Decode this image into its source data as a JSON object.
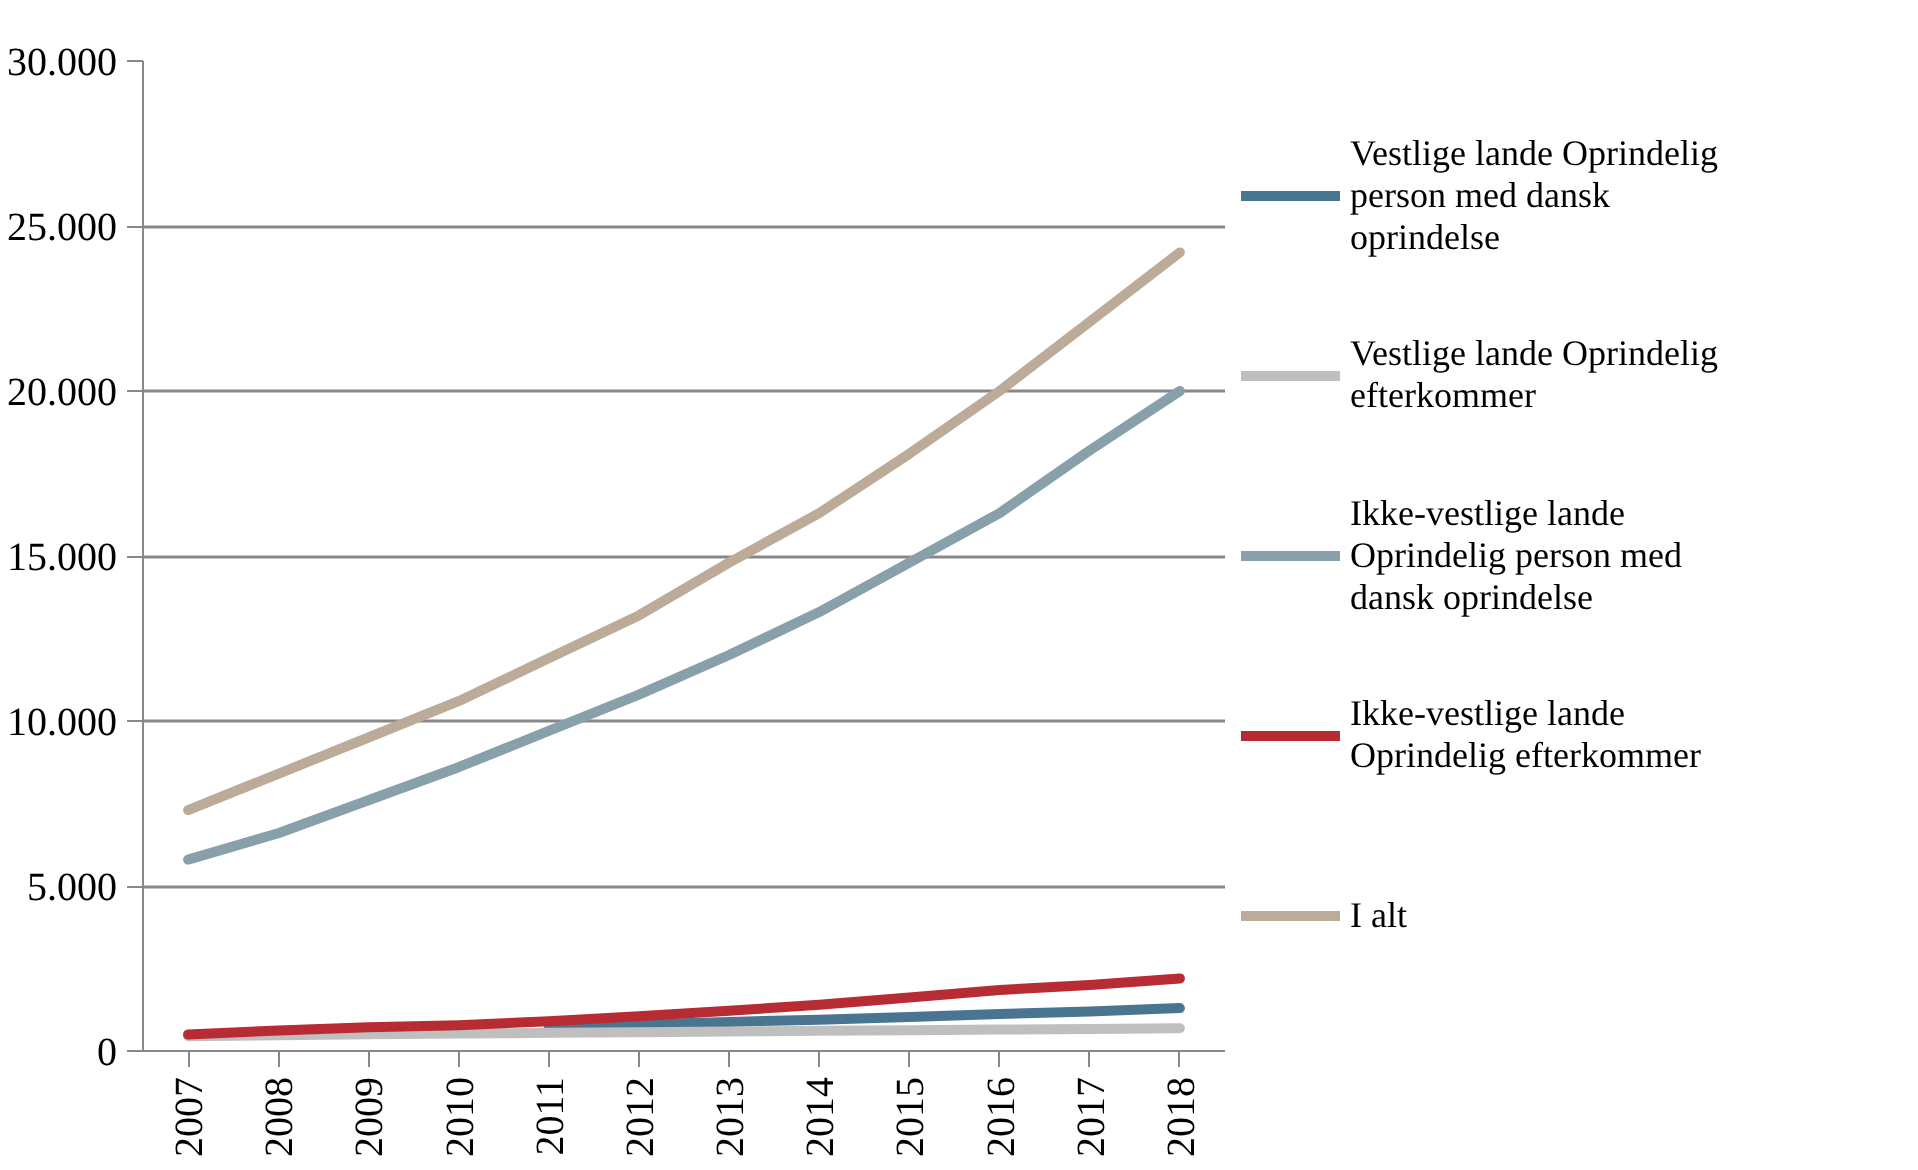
{
  "chart_data": {
    "type": "line",
    "categories": [
      "2007",
      "2008",
      "2009",
      "2010",
      "2011",
      "2012",
      "2013",
      "2014",
      "2015",
      "2016",
      "2017",
      "2018"
    ],
    "series": [
      {
        "name": "Vestlige lande Oprindelig person med dansk oprindelse",
        "color": "#4a7590",
        "values": [
          null,
          null,
          null,
          null,
          740,
          800,
          880,
          950,
          1030,
          1120,
          1200,
          1300
        ]
      },
      {
        "name": "Vestlige lande Oprindelig efterkommer",
        "color": "#bfbfbf",
        "values": [
          450,
          480,
          510,
          530,
          550,
          570,
          590,
          610,
          630,
          650,
          670,
          690
        ]
      },
      {
        "name": "Ikke-vestlige lande Oprindelig person med dansk oprindelse",
        "color": "#87a0aa",
        "values": [
          5800,
          6600,
          7600,
          8600,
          9700,
          10800,
          12000,
          13300,
          14800,
          16300,
          18200,
          20000
        ]
      },
      {
        "name": "Ikke-vestlige lande Oprindelig efterkommer",
        "color": "#b72b33",
        "values": [
          500,
          620,
          720,
          780,
          900,
          1050,
          1220,
          1400,
          1620,
          1850,
          2000,
          2200
        ]
      },
      {
        "name": "I alt",
        "color": "#bcab98",
        "values": [
          7300,
          8400,
          9500,
          10600,
          11900,
          13200,
          14800,
          16300,
          18100,
          20000,
          22100,
          24200
        ]
      }
    ],
    "ylim": [
      0,
      30000
    ],
    "yticks": [
      0,
      {
        "value": 5000,
        "label": "5.000"
      },
      {
        "value": 10000,
        "label": "10.000"
      },
      {
        "value": 15000,
        "label": "15.000"
      },
      {
        "value": 20000,
        "label": "20.000"
      },
      {
        "value": 25000,
        "label": "25.000"
      },
      {
        "value": 30000,
        "label": "30.000"
      }
    ],
    "grid": "y",
    "legend": "right",
    "marker": "none",
    "line_style": "solid"
  }
}
